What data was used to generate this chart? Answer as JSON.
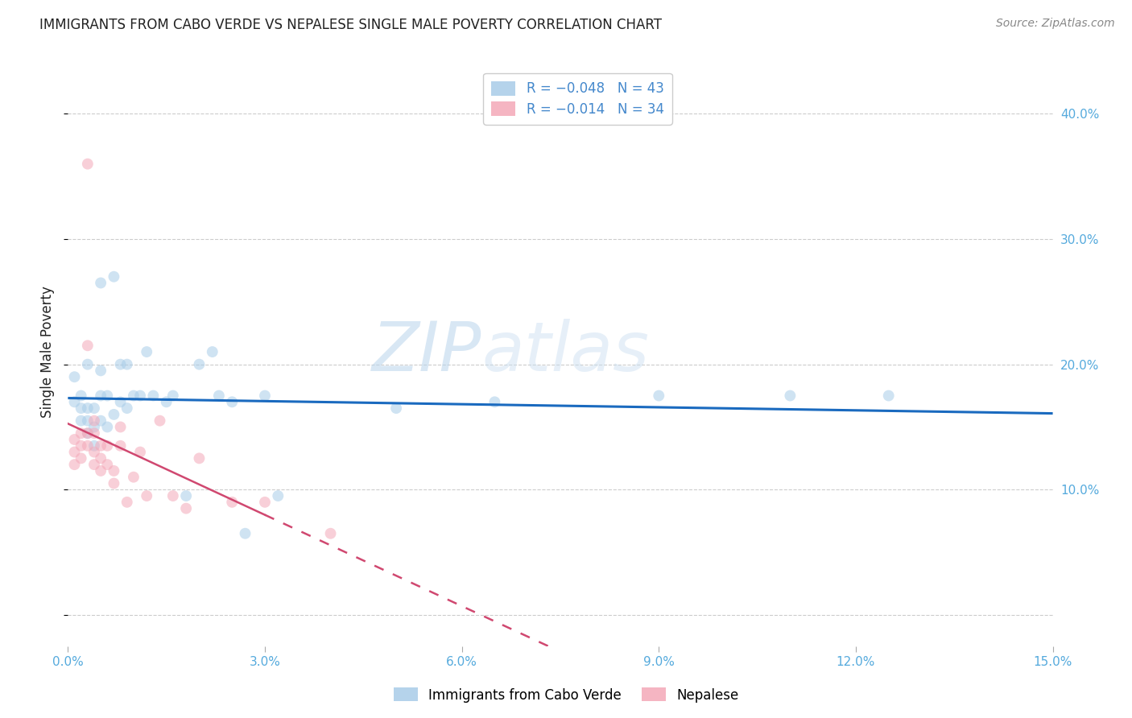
{
  "title": "IMMIGRANTS FROM CABO VERDE VS NEPALESE SINGLE MALE POVERTY CORRELATION CHART",
  "source": "Source: ZipAtlas.com",
  "ylabel": "Single Male Poverty",
  "series1_label": "Immigrants from Cabo Verde",
  "series2_label": "Nepalese",
  "series1_color": "#a8cce8",
  "series2_color": "#f4a8b8",
  "trend_color_cabo": "#1a6abf",
  "trend_color_nepal": "#d04870",
  "legend_r1": "R = −0.048",
  "legend_n1": "N = 43",
  "legend_r2": "R = −0.014",
  "legend_n2": "N = 34",
  "legend_text_color": "#4488cc",
  "xlim": [
    0.0,
    0.15
  ],
  "ylim": [
    -0.025,
    0.445
  ],
  "x_ticks": [
    0.0,
    0.03,
    0.06,
    0.09,
    0.12,
    0.15
  ],
  "x_ticklabels": [
    "0.0%",
    "3.0%",
    "6.0%",
    "9.0%",
    "12.0%",
    "15.0%"
  ],
  "y_ticks": [
    0.0,
    0.1,
    0.2,
    0.3,
    0.4
  ],
  "y_ticklabels_right": [
    "",
    "10.0%",
    "20.0%",
    "30.0%",
    "40.0%"
  ],
  "watermark_zip": "ZIP",
  "watermark_atlas": "atlas",
  "bg_color": "#ffffff",
  "grid_color": "#cccccc",
  "title_color": "#222222",
  "axis_tick_color": "#55aadd",
  "marker_size": 100,
  "marker_alpha": 0.55,
  "cabo_x": [
    0.001,
    0.001,
    0.002,
    0.002,
    0.002,
    0.003,
    0.003,
    0.003,
    0.003,
    0.004,
    0.004,
    0.004,
    0.005,
    0.005,
    0.005,
    0.005,
    0.006,
    0.006,
    0.007,
    0.007,
    0.008,
    0.008,
    0.009,
    0.009,
    0.01,
    0.011,
    0.012,
    0.013,
    0.015,
    0.016,
    0.018,
    0.02,
    0.022,
    0.023,
    0.025,
    0.027,
    0.03,
    0.032,
    0.05,
    0.065,
    0.09,
    0.11,
    0.125
  ],
  "cabo_y": [
    0.19,
    0.17,
    0.175,
    0.165,
    0.155,
    0.2,
    0.165,
    0.155,
    0.145,
    0.165,
    0.15,
    0.135,
    0.265,
    0.195,
    0.175,
    0.155,
    0.175,
    0.15,
    0.27,
    0.16,
    0.2,
    0.17,
    0.2,
    0.165,
    0.175,
    0.175,
    0.21,
    0.175,
    0.17,
    0.175,
    0.095,
    0.2,
    0.21,
    0.175,
    0.17,
    0.065,
    0.175,
    0.095,
    0.165,
    0.17,
    0.175,
    0.175,
    0.175
  ],
  "nepal_x": [
    0.001,
    0.001,
    0.001,
    0.002,
    0.002,
    0.002,
    0.003,
    0.003,
    0.003,
    0.003,
    0.004,
    0.004,
    0.004,
    0.004,
    0.005,
    0.005,
    0.005,
    0.006,
    0.006,
    0.007,
    0.007,
    0.008,
    0.008,
    0.009,
    0.01,
    0.011,
    0.012,
    0.014,
    0.016,
    0.018,
    0.02,
    0.025,
    0.03,
    0.04
  ],
  "nepal_y": [
    0.14,
    0.13,
    0.12,
    0.145,
    0.135,
    0.125,
    0.36,
    0.215,
    0.145,
    0.135,
    0.155,
    0.145,
    0.13,
    0.12,
    0.135,
    0.125,
    0.115,
    0.135,
    0.12,
    0.115,
    0.105,
    0.15,
    0.135,
    0.09,
    0.11,
    0.13,
    0.095,
    0.155,
    0.095,
    0.085,
    0.125,
    0.09,
    0.09,
    0.065
  ]
}
